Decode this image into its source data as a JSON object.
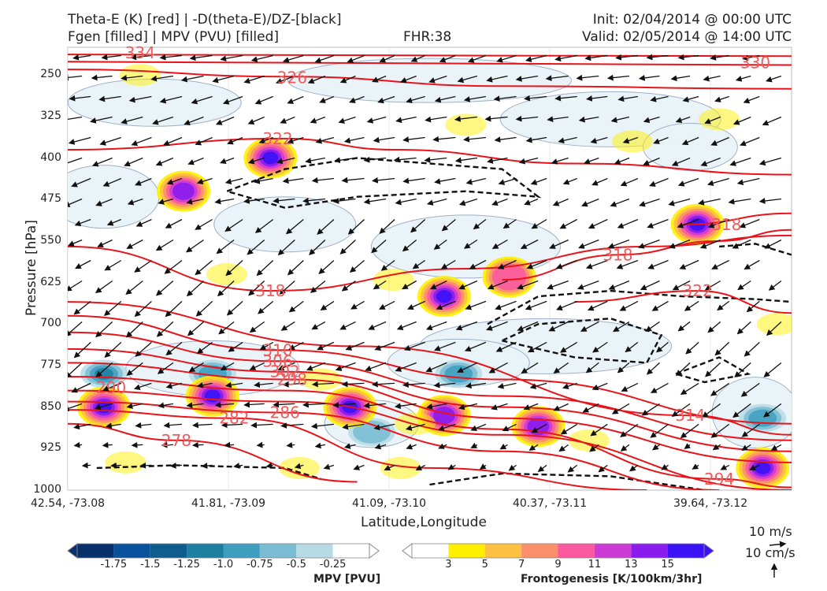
{
  "header": {
    "line1_left": "Theta-E (K) [red] | -D(theta-E)/DZ-[black]",
    "line2_left": "Fgen [filled] | MPV (PVU) [filled]",
    "fhr": "FHR:38",
    "init": "Init: 02/04/2014 @ 00:00 UTC",
    "valid": "Valid: 02/05/2014 @ 14:00 UTC"
  },
  "axes": {
    "ylabel": "Pressure [hPa]",
    "xlabel": "Latitude,Longitude",
    "y_ticks": [
      "250",
      "325",
      "400",
      "475",
      "550",
      "625",
      "700",
      "775",
      "850",
      "925",
      "1000"
    ],
    "x_ticks": [
      "42.54, -73.08",
      "41.81, -73.09",
      "41.09, -73.10",
      "40.37, -73.11",
      "39.64, -73.12"
    ]
  },
  "colorbars": {
    "mpv": {
      "title": "MPV [PVU]",
      "ticks": [
        "-1.75",
        "-1.5",
        "-1.25",
        "-1.0",
        "-0.75",
        "-0.5",
        "-0.25"
      ],
      "colors": [
        "#08306b",
        "#08519c",
        "#0f5d8f",
        "#1d7fa0",
        "#3f9ebf",
        "#79bcd3",
        "#b6dbe5",
        "#ffffff"
      ]
    },
    "fgen": {
      "title": "Frontogenesis [K/100km/3hr]",
      "ticks": [
        "3",
        "5",
        "7",
        "9",
        "11",
        "13",
        "15"
      ],
      "colors": [
        "#ffffff",
        "#ffef00",
        "#fdc040",
        "#fb8f6c",
        "#fb5aa0",
        "#cc3bd6",
        "#8a1cee",
        "#3a12f5"
      ]
    }
  },
  "wind_reference": {
    "horizontal": "10 m/s",
    "vertical": "10 cm/s"
  },
  "chart_data": {
    "type": "contour",
    "title": "Theta-E (K) [red] | -D(theta-E)/DZ-[black] ; Fgen [filled] | MPV (PVU) [filled]",
    "xlabel": "Latitude,Longitude",
    "ylabel": "Pressure [hPa]",
    "ylim": [
      1000,
      200
    ],
    "y_scale": "linear (inverted)",
    "x_categories": [
      "42.54, -73.08",
      "41.81, -73.09",
      "41.09, -73.10",
      "40.37, -73.11",
      "39.64, -73.12"
    ],
    "theta_e_contours_K": [
      {
        "level": "334",
        "label_pos": [
          0.1,
          210
        ],
        "shape": [
          [
            0,
            213
          ],
          [
            0.55,
            215
          ],
          [
            1.0,
            216
          ]
        ]
      },
      {
        "level": "330",
        "label_pos": [
          0.95,
          228
        ],
        "shape": [
          [
            0,
            226
          ],
          [
            0.5,
            229
          ],
          [
            1.0,
            232
          ]
        ]
      },
      {
        "level": "326",
        "label_pos": [
          0.31,
          255
        ],
        "shape": [
          [
            0,
            240
          ],
          [
            0.3,
            253
          ],
          [
            0.6,
            270
          ],
          [
            1.0,
            275
          ]
        ]
      },
      {
        "level": "322",
        "label_pos": [
          0.29,
          365
        ],
        "shape": [
          [
            0,
            385
          ],
          [
            0.3,
            365
          ],
          [
            0.45,
            385
          ],
          [
            0.7,
            410
          ],
          [
            1.0,
            430
          ]
        ]
      },
      {
        "level": "318",
        "label_pos": [
          0.28,
          640
        ],
        "shape": [
          [
            0,
            560
          ],
          [
            0.28,
            640
          ],
          [
            0.55,
            600
          ],
          [
            0.8,
            560
          ],
          [
            1.0,
            540
          ]
        ]
      },
      {
        "level": "318",
        "label_pos": [
          0.76,
          575
        ],
        "shape": [
          [
            0.6,
            620
          ],
          [
            0.76,
            575
          ],
          [
            0.9,
            550
          ],
          [
            1.0,
            530
          ]
        ]
      },
      {
        "level": "322",
        "label_pos": [
          0.87,
          640
        ],
        "shape": [
          [
            0.7,
            660
          ],
          [
            0.87,
            640
          ],
          [
            1.0,
            680
          ]
        ]
      },
      {
        "level": "318",
        "label_pos": [
          0.91,
          520
        ],
        "shape": [
          [
            0.85,
            520
          ],
          [
            1.0,
            500
          ]
        ]
      },
      {
        "level": "314",
        "label_pos": [
          0.86,
          865
        ],
        "shape": [
          [
            0,
            660
          ],
          [
            0.4,
            740
          ],
          [
            0.86,
            865
          ],
          [
            1.0,
            900
          ]
        ]
      },
      {
        "level": "310",
        "label_pos": [
          0.29,
          747
        ],
        "shape": [
          [
            0,
            685
          ],
          [
            0.29,
            747
          ],
          [
            0.6,
            800
          ],
          [
            1.0,
            880
          ]
        ]
      },
      {
        "level": "306",
        "label_pos": [
          0.29,
          767
        ],
        "shape": [
          [
            0,
            715
          ],
          [
            0.29,
            767
          ],
          [
            0.6,
            830
          ],
          [
            1.0,
            910
          ]
        ]
      },
      {
        "level": "302",
        "label_pos": [
          0.3,
          786
        ],
        "shape": [
          [
            0,
            745
          ],
          [
            0.3,
            786
          ],
          [
            0.6,
            850
          ],
          [
            1.0,
            930
          ]
        ]
      },
      {
        "level": "298",
        "label_pos": [
          0.31,
          800
        ],
        "shape": [
          [
            0,
            770
          ],
          [
            0.31,
            800
          ],
          [
            0.6,
            870
          ],
          [
            1.0,
            950
          ]
        ]
      },
      {
        "level": "294",
        "label_pos": [
          0.9,
          980
        ],
        "shape": [
          [
            0,
            795
          ],
          [
            0.3,
            820
          ],
          [
            0.6,
            890
          ],
          [
            0.9,
            980
          ],
          [
            1.0,
            995
          ]
        ]
      },
      {
        "level": "290",
        "label_pos": [
          0.06,
          815
        ],
        "shape": [
          [
            0,
            820
          ],
          [
            0.3,
            840
          ],
          [
            0.6,
            900
          ],
          [
            1.0,
            1000
          ]
        ]
      },
      {
        "level": "286",
        "label_pos": [
          0.3,
          860
        ],
        "shape": [
          [
            0,
            840
          ],
          [
            0.3,
            860
          ],
          [
            0.6,
            930
          ],
          [
            0.9,
            1000
          ]
        ]
      },
      {
        "level": "282",
        "label_pos": [
          0.23,
          870
        ],
        "shape": [
          [
            0,
            855
          ],
          [
            0.23,
            870
          ],
          [
            0.5,
            960
          ],
          [
            0.8,
            1000
          ]
        ]
      },
      {
        "level": "278",
        "label_pos": [
          0.15,
          910
        ],
        "shape": [
          [
            0,
            880
          ],
          [
            0.15,
            910
          ],
          [
            0.4,
            985
          ]
        ]
      }
    ],
    "fgen_maxima_K_per_100km_per_3hr": [
      {
        "x": 0.05,
        "p": 850,
        "value": 15
      },
      {
        "x": 0.2,
        "p": 830,
        "value": 15
      },
      {
        "x": 0.28,
        "p": 400,
        "value": 15
      },
      {
        "x": 0.16,
        "p": 460,
        "value": 13
      },
      {
        "x": 0.39,
        "p": 850,
        "value": 15
      },
      {
        "x": 0.52,
        "p": 865,
        "value": 13
      },
      {
        "x": 0.52,
        "p": 650,
        "value": 15
      },
      {
        "x": 0.65,
        "p": 885,
        "value": 13
      },
      {
        "x": 0.87,
        "p": 520,
        "value": 15
      },
      {
        "x": 0.96,
        "p": 960,
        "value": 15
      },
      {
        "x": 0.61,
        "p": 615,
        "value": 9
      }
    ],
    "mpv_minima_PVU": [
      {
        "x": 0.05,
        "p": 790,
        "value": -1.0
      },
      {
        "x": 0.2,
        "p": 790,
        "value": -0.75
      },
      {
        "x": 0.54,
        "p": 790,
        "value": -0.75
      },
      {
        "x": 0.96,
        "p": 870,
        "value": -0.75
      },
      {
        "x": 0.42,
        "p": 895,
        "value": -0.5
      }
    ],
    "d_theta_e_dz_negative_contours": "dashed black regions near 400-550 hPa (x 0.22-0.65), 625-760 hPa (x 0.56-1.0), and near surface 960-1000 hPa"
  }
}
